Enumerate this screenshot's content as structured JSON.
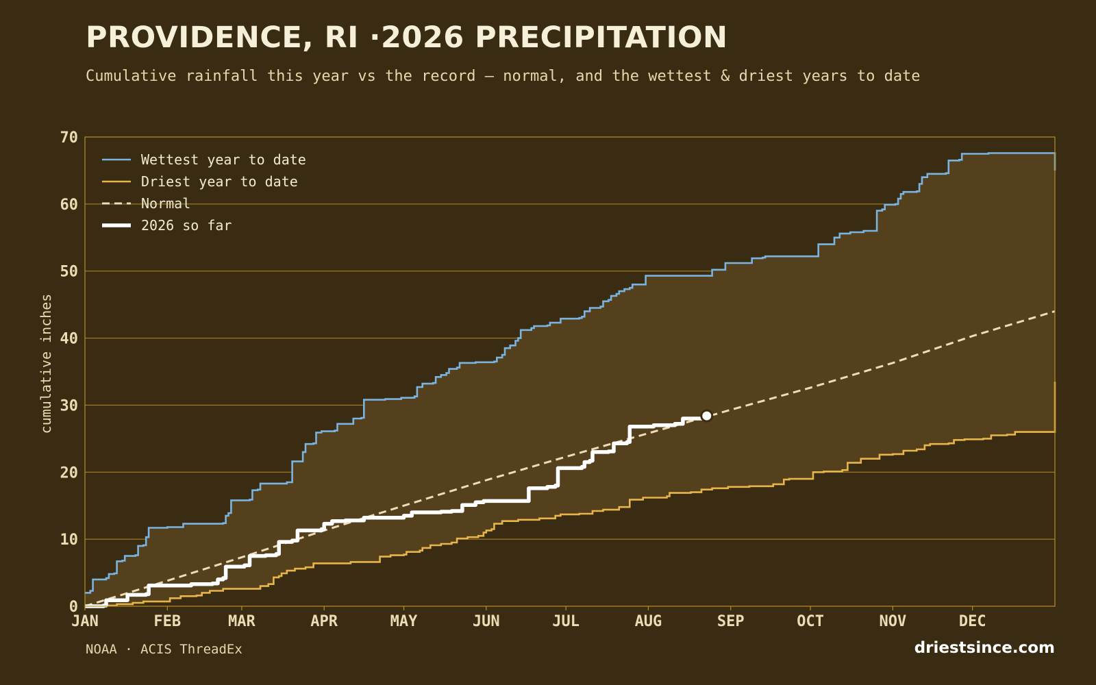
{
  "header": {
    "title": "PROVIDENCE, RI ·2026 PRECIPITATION",
    "subtitle": "Cumulative rainfall this year vs the record — normal, and the wettest & driest years to date"
  },
  "footer": {
    "source": "NOAA · ACIS ThreadEx",
    "brand": "driestsince.com"
  },
  "colors": {
    "background": "#3a2c12",
    "band_fill": "#55401d",
    "grid": "#b88c2a",
    "wettest": "#7ab4e0",
    "driest": "#e8b54a",
    "normal": "#ecdcb8",
    "current": "#ffffff"
  },
  "chart_data": {
    "type": "line",
    "ylabel": "cumulative inches",
    "ylim": [
      0,
      70
    ],
    "yticks": [
      0,
      10,
      20,
      30,
      40,
      50,
      60,
      70
    ],
    "xlim": [
      0,
      365
    ],
    "months": [
      {
        "label": "JAN",
        "day": 0
      },
      {
        "label": "FEB",
        "day": 31
      },
      {
        "label": "MAR",
        "day": 59
      },
      {
        "label": "APR",
        "day": 90
      },
      {
        "label": "MAY",
        "day": 120
      },
      {
        "label": "JUN",
        "day": 151
      },
      {
        "label": "JUL",
        "day": 181
      },
      {
        "label": "AUG",
        "day": 212
      },
      {
        "label": "SEP",
        "day": 243
      },
      {
        "label": "OCT",
        "day": 273
      },
      {
        "label": "NOV",
        "day": 304
      },
      {
        "label": "DEC",
        "day": 334
      }
    ],
    "legend_position": "top-left",
    "grid": true,
    "series": [
      {
        "name": "Wettest year to date",
        "style": "step",
        "points": [
          [
            0,
            2.0
          ],
          [
            2,
            2.3
          ],
          [
            3,
            4.0
          ],
          [
            8,
            4.2
          ],
          [
            9,
            4.8
          ],
          [
            11,
            4.9
          ],
          [
            12,
            6.7
          ],
          [
            14,
            6.8
          ],
          [
            15,
            7.5
          ],
          [
            19,
            7.6
          ],
          [
            20,
            9.0
          ],
          [
            22,
            9.1
          ],
          [
            23,
            10.3
          ],
          [
            24,
            11.7
          ],
          [
            31,
            11.8
          ],
          [
            36,
            11.8
          ],
          [
            37,
            12.3
          ],
          [
            46,
            12.3
          ],
          [
            52,
            12.4
          ],
          [
            53,
            13.5
          ],
          [
            54,
            13.9
          ],
          [
            55,
            15.8
          ],
          [
            62,
            15.9
          ],
          [
            63,
            17.3
          ],
          [
            65,
            17.4
          ],
          [
            66,
            18.3
          ],
          [
            73,
            18.3
          ],
          [
            76,
            18.5
          ],
          [
            78,
            21.6
          ],
          [
            81,
            21.6
          ],
          [
            82,
            23.0
          ],
          [
            83,
            24.2
          ],
          [
            86,
            24.3
          ],
          [
            87,
            25.9
          ],
          [
            89,
            26.1
          ],
          [
            94,
            26.2
          ],
          [
            95,
            27.2
          ],
          [
            100,
            27.2
          ],
          [
            101,
            28.0
          ],
          [
            104,
            28.1
          ],
          [
            105,
            30.8
          ],
          [
            113,
            30.9
          ],
          [
            119,
            31.1
          ],
          [
            124,
            31.3
          ],
          [
            125,
            32.7
          ],
          [
            127,
            33.2
          ],
          [
            131,
            33.3
          ],
          [
            132,
            34.2
          ],
          [
            134,
            34.5
          ],
          [
            136,
            34.8
          ],
          [
            137,
            35.4
          ],
          [
            140,
            35.6
          ],
          [
            141,
            36.3
          ],
          [
            147,
            36.4
          ],
          [
            154,
            36.5
          ],
          [
            155,
            37.1
          ],
          [
            157,
            37.5
          ],
          [
            158,
            38.5
          ],
          [
            160,
            38.9
          ],
          [
            162,
            39.6
          ],
          [
            163,
            40.0
          ],
          [
            164,
            41.2
          ],
          [
            168,
            41.5
          ],
          [
            169,
            41.8
          ],
          [
            174,
            41.9
          ],
          [
            175,
            42.3
          ],
          [
            178,
            42.3
          ],
          [
            179,
            42.9
          ],
          [
            186,
            43.0
          ],
          [
            187,
            43.2
          ],
          [
            188,
            44.0
          ],
          [
            190,
            44.5
          ],
          [
            194,
            44.7
          ],
          [
            195,
            45.5
          ],
          [
            197,
            45.7
          ],
          [
            198,
            46.3
          ],
          [
            200,
            46.6
          ],
          [
            201,
            47.0
          ],
          [
            203,
            47.3
          ],
          [
            205,
            47.5
          ],
          [
            206,
            48.0
          ],
          [
            210,
            48.0
          ],
          [
            211,
            49.3
          ],
          [
            220,
            49.3
          ],
          [
            235,
            49.3
          ],
          [
            236,
            50.2
          ],
          [
            240,
            50.2
          ],
          [
            241,
            51.2
          ],
          [
            250,
            51.2
          ],
          [
            251,
            51.9
          ],
          [
            255,
            52.0
          ],
          [
            256,
            52.2
          ],
          [
            265,
            52.2
          ],
          [
            275,
            52.2
          ],
          [
            276,
            54.0
          ],
          [
            281,
            54.0
          ],
          [
            282,
            55.0
          ],
          [
            284,
            55.6
          ],
          [
            288,
            55.8
          ],
          [
            292,
            55.8
          ],
          [
            293,
            56.0
          ],
          [
            297,
            56.0
          ],
          [
            298,
            59.0
          ],
          [
            300,
            59.2
          ],
          [
            301,
            59.9
          ],
          [
            305,
            60.0
          ],
          [
            306,
            60.8
          ],
          [
            307,
            61.5
          ],
          [
            308,
            61.8
          ],
          [
            313,
            61.9
          ],
          [
            314,
            63.0
          ],
          [
            315,
            64.0
          ],
          [
            317,
            64.5
          ],
          [
            324,
            64.6
          ],
          [
            325,
            66.5
          ],
          [
            329,
            66.6
          ],
          [
            330,
            67.5
          ],
          [
            340,
            67.6
          ],
          [
            365,
            65.0
          ]
        ]
      },
      {
        "name": "Driest year to date",
        "style": "step",
        "points": [
          [
            0,
            0
          ],
          [
            3,
            0.1
          ],
          [
            10,
            0.1
          ],
          [
            12,
            0.3
          ],
          [
            18,
            0.5
          ],
          [
            22,
            0.7
          ],
          [
            31,
            0.7
          ],
          [
            32,
            1.2
          ],
          [
            35,
            1.2
          ],
          [
            36,
            1.5
          ],
          [
            42,
            1.6
          ],
          [
            44,
            2.0
          ],
          [
            47,
            2.3
          ],
          [
            52,
            2.6
          ],
          [
            65,
            2.6
          ],
          [
            66,
            3.0
          ],
          [
            69,
            3.3
          ],
          [
            71,
            4.3
          ],
          [
            73,
            4.5
          ],
          [
            74,
            4.9
          ],
          [
            76,
            5.3
          ],
          [
            79,
            5.6
          ],
          [
            83,
            5.8
          ],
          [
            86,
            6.4
          ],
          [
            92,
            6.4
          ],
          [
            100,
            6.6
          ],
          [
            110,
            6.6
          ],
          [
            111,
            7.4
          ],
          [
            115,
            7.6
          ],
          [
            120,
            7.7
          ],
          [
            121,
            8.1
          ],
          [
            126,
            8.3
          ],
          [
            127,
            8.7
          ],
          [
            130,
            9.1
          ],
          [
            134,
            9.3
          ],
          [
            138,
            9.5
          ],
          [
            140,
            10.1
          ],
          [
            144,
            10.3
          ],
          [
            148,
            10.5
          ],
          [
            150,
            11.0
          ],
          [
            151,
            11.3
          ],
          [
            153,
            11.5
          ],
          [
            154,
            12.3
          ],
          [
            157,
            12.7
          ],
          [
            163,
            12.9
          ],
          [
            171,
            13.1
          ],
          [
            177,
            13.5
          ],
          [
            179,
            13.7
          ],
          [
            186,
            13.8
          ],
          [
            191,
            14.2
          ],
          [
            195,
            14.4
          ],
          [
            201,
            14.8
          ],
          [
            205,
            15.9
          ],
          [
            210,
            16.2
          ],
          [
            219,
            16.4
          ],
          [
            220,
            16.9
          ],
          [
            228,
            17.0
          ],
          [
            232,
            17.4
          ],
          [
            236,
            17.6
          ],
          [
            242,
            17.8
          ],
          [
            250,
            17.9
          ],
          [
            259,
            18.2
          ],
          [
            263,
            18.9
          ],
          [
            265,
            19.0
          ],
          [
            272,
            19.0
          ],
          [
            274,
            20.0
          ],
          [
            276,
            20.0
          ],
          [
            278,
            20.1
          ],
          [
            285,
            20.3
          ],
          [
            287,
            21.4
          ],
          [
            292,
            22.0
          ],
          [
            299,
            22.6
          ],
          [
            304,
            22.7
          ],
          [
            308,
            23.2
          ],
          [
            313,
            23.4
          ],
          [
            316,
            24.0
          ],
          [
            318,
            24.2
          ],
          [
            325,
            24.3
          ],
          [
            327,
            24.8
          ],
          [
            331,
            24.9
          ],
          [
            338,
            25.0
          ],
          [
            341,
            25.5
          ],
          [
            347,
            25.6
          ],
          [
            350,
            26.0
          ],
          [
            356,
            26.0
          ],
          [
            364,
            26.0
          ],
          [
            365,
            33.5
          ]
        ]
      },
      {
        "name": "Normal",
        "style": "dashed",
        "points": [
          [
            0,
            0
          ],
          [
            31,
            3.8
          ],
          [
            59,
            7.3
          ],
          [
            90,
            11.3
          ],
          [
            120,
            15.0
          ],
          [
            151,
            18.8
          ],
          [
            181,
            22.3
          ],
          [
            212,
            25.8
          ],
          [
            243,
            29.3
          ],
          [
            273,
            32.6
          ],
          [
            304,
            36.3
          ],
          [
            334,
            40.3
          ],
          [
            365,
            44.0
          ]
        ]
      },
      {
        "name": "2026 so far",
        "style": "step",
        "points": [
          [
            0,
            0
          ],
          [
            7,
            0.1
          ],
          [
            8,
            0.9
          ],
          [
            15,
            0.9
          ],
          [
            16,
            1.7
          ],
          [
            23,
            1.8
          ],
          [
            24,
            3.1
          ],
          [
            35,
            3.1
          ],
          [
            40,
            3.3
          ],
          [
            48,
            3.4
          ],
          [
            50,
            4.0
          ],
          [
            52,
            4.2
          ],
          [
            53,
            5.9
          ],
          [
            60,
            6.1
          ],
          [
            62,
            7.5
          ],
          [
            68,
            7.6
          ],
          [
            72,
            7.8
          ],
          [
            73,
            9.6
          ],
          [
            78,
            9.8
          ],
          [
            80,
            11.3
          ],
          [
            89,
            11.5
          ],
          [
            90,
            12.3
          ],
          [
            93,
            12.7
          ],
          [
            98,
            12.8
          ],
          [
            105,
            13.2
          ],
          [
            111,
            13.2
          ],
          [
            120,
            13.5
          ],
          [
            123,
            14.0
          ],
          [
            134,
            14.1
          ],
          [
            138,
            14.2
          ],
          [
            142,
            15.1
          ],
          [
            147,
            15.5
          ],
          [
            150,
            15.7
          ],
          [
            166,
            15.7
          ],
          [
            167,
            17.6
          ],
          [
            174,
            17.8
          ],
          [
            177,
            18.0
          ],
          [
            178,
            20.6
          ],
          [
            187,
            20.8
          ],
          [
            188,
            21.5
          ],
          [
            190,
            21.7
          ],
          [
            191,
            23.0
          ],
          [
            197,
            23.1
          ],
          [
            199,
            24.3
          ],
          [
            204,
            24.5
          ],
          [
            205,
            26.8
          ],
          [
            211,
            26.8
          ],
          [
            214,
            27.0
          ],
          [
            222,
            27.2
          ],
          [
            225,
            28.0
          ],
          [
            234,
            28.4
          ]
        ]
      }
    ]
  }
}
